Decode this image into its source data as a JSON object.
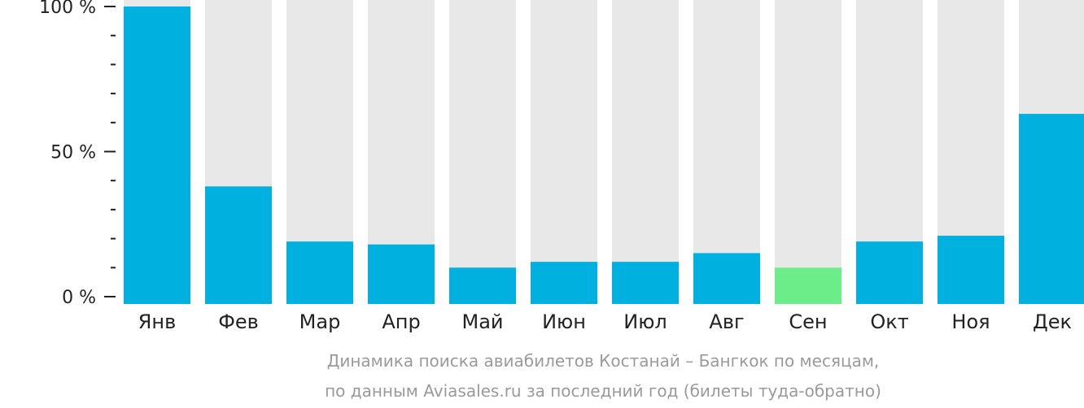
{
  "chart_data": {
    "type": "bar",
    "categories": [
      "Янв",
      "Фев",
      "Мар",
      "Апр",
      "Май",
      "Июн",
      "Июл",
      "Авг",
      "Сен",
      "Окт",
      "Ноя",
      "Дек"
    ],
    "values": [
      100,
      38,
      19,
      18,
      10,
      12,
      12,
      15,
      10,
      19,
      21,
      63
    ],
    "ylim": [
      0,
      100
    ],
    "y_ticks": [
      {
        "value": 0,
        "label": "0 %"
      },
      {
        "value": 50,
        "label": "50 %"
      },
      {
        "value": 100,
        "label": "100 %"
      }
    ],
    "minor_tick_step": 10,
    "highlight_index": 8,
    "colors": {
      "bar": "#00b0de",
      "highlight": "#6ced8a",
      "track": "#e8e8e8",
      "axis": "#222222"
    },
    "caption": [
      "Динамика поиска авиабилетов Костанай – Бангкок по месяцам,",
      "по данным Aviasales.ru за последний год (билеты туда-обратно)"
    ]
  }
}
